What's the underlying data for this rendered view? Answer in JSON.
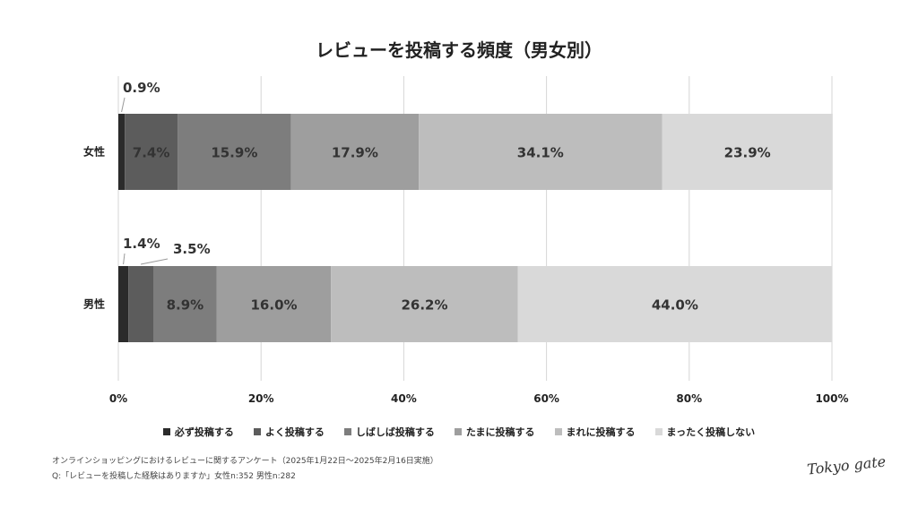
{
  "title": "レビューを投稿する頻度（男女別）",
  "chart_data": {
    "type": "bar",
    "orientation": "horizontal-stacked-100",
    "title": "レビューを投稿する頻度（男女別）",
    "categories": [
      "女性",
      "男性"
    ],
    "series": [
      {
        "name": "必ず投稿する",
        "values": [
          0.9,
          1.4
        ],
        "labels": [
          "0.9%",
          "1.4%"
        ],
        "color": "#2b2b2b"
      },
      {
        "name": "よく投稿する",
        "values": [
          7.4,
          3.5
        ],
        "labels": [
          "7.4%",
          "3.5%"
        ],
        "color": "#5c5c5c"
      },
      {
        "name": "しばしば投稿する",
        "values": [
          15.9,
          8.9
        ],
        "labels": [
          "15.9%",
          "8.9%"
        ],
        "color": "#7d7d7d"
      },
      {
        "name": "たまに投稿する",
        "values": [
          17.9,
          16.0
        ],
        "labels": [
          "17.9%",
          "16.0%"
        ],
        "color": "#9e9e9e"
      },
      {
        "name": "まれに投稿する",
        "values": [
          34.1,
          26.2
        ],
        "labels": [
          "34.1%",
          "26.2%"
        ],
        "color": "#bdbdbd"
      },
      {
        "name": "まったく投稿しない",
        "values": [
          23.9,
          44.0
        ],
        "labels": [
          "23.9%",
          "44.0%"
        ],
        "color": "#d9d9d9"
      }
    ],
    "xlim": [
      0,
      100
    ],
    "xticks": [
      "0%",
      "20%",
      "40%",
      "60%",
      "80%",
      "100%"
    ],
    "grid": true,
    "legend_position": "bottom"
  },
  "footnote": {
    "line1": "オンラインショッピングにおけるレビューに関するアンケート（2025年1月22日～2025年2月16日実施）",
    "line2": "Q:「レビューを投稿した経験はありますか」女性n:352 男性n:282"
  },
  "logo_text": "Tokyo gate"
}
